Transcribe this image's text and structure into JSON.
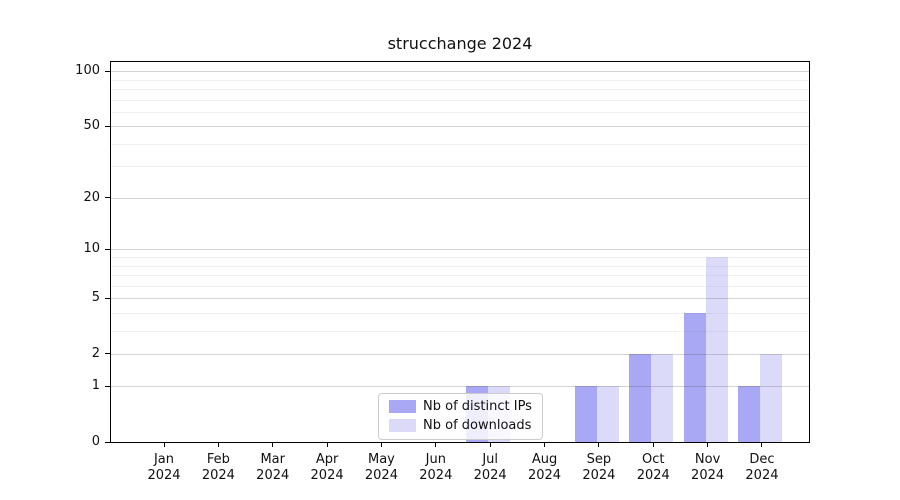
{
  "figure": {
    "title": "strucchange 2024",
    "background": "#ffffff"
  },
  "chart_data": {
    "type": "bar",
    "title": "strucchange 2024",
    "xlabel": "",
    "ylabel": "",
    "categories": [
      "Jan 2024",
      "Feb 2024",
      "Mar 2024",
      "Apr 2024",
      "May 2024",
      "Jun 2024",
      "Jul 2024",
      "Aug 2024",
      "Sep 2024",
      "Oct 2024",
      "Nov 2024",
      "Dec 2024"
    ],
    "series": [
      {
        "name": "Nb of distinct IPs",
        "color": "#a8a8f4",
        "values": [
          0,
          0,
          0,
          0,
          0,
          0,
          1,
          0,
          1,
          2,
          4,
          1
        ]
      },
      {
        "name": "Nb of downloads",
        "color": "#dbdbf9",
        "values": [
          0,
          0,
          0,
          0,
          0,
          0,
          1,
          0,
          1,
          2,
          9,
          2
        ]
      }
    ],
    "yticks": [
      0,
      1,
      2,
      5,
      10,
      20,
      50,
      100
    ],
    "minor_gridlines": [
      3,
      4,
      6,
      7,
      8,
      9,
      30,
      40,
      60,
      70,
      80,
      90
    ],
    "ylim": [
      0,
      115
    ],
    "scale": "log1p",
    "grid": true,
    "legend_position": "lower center"
  }
}
